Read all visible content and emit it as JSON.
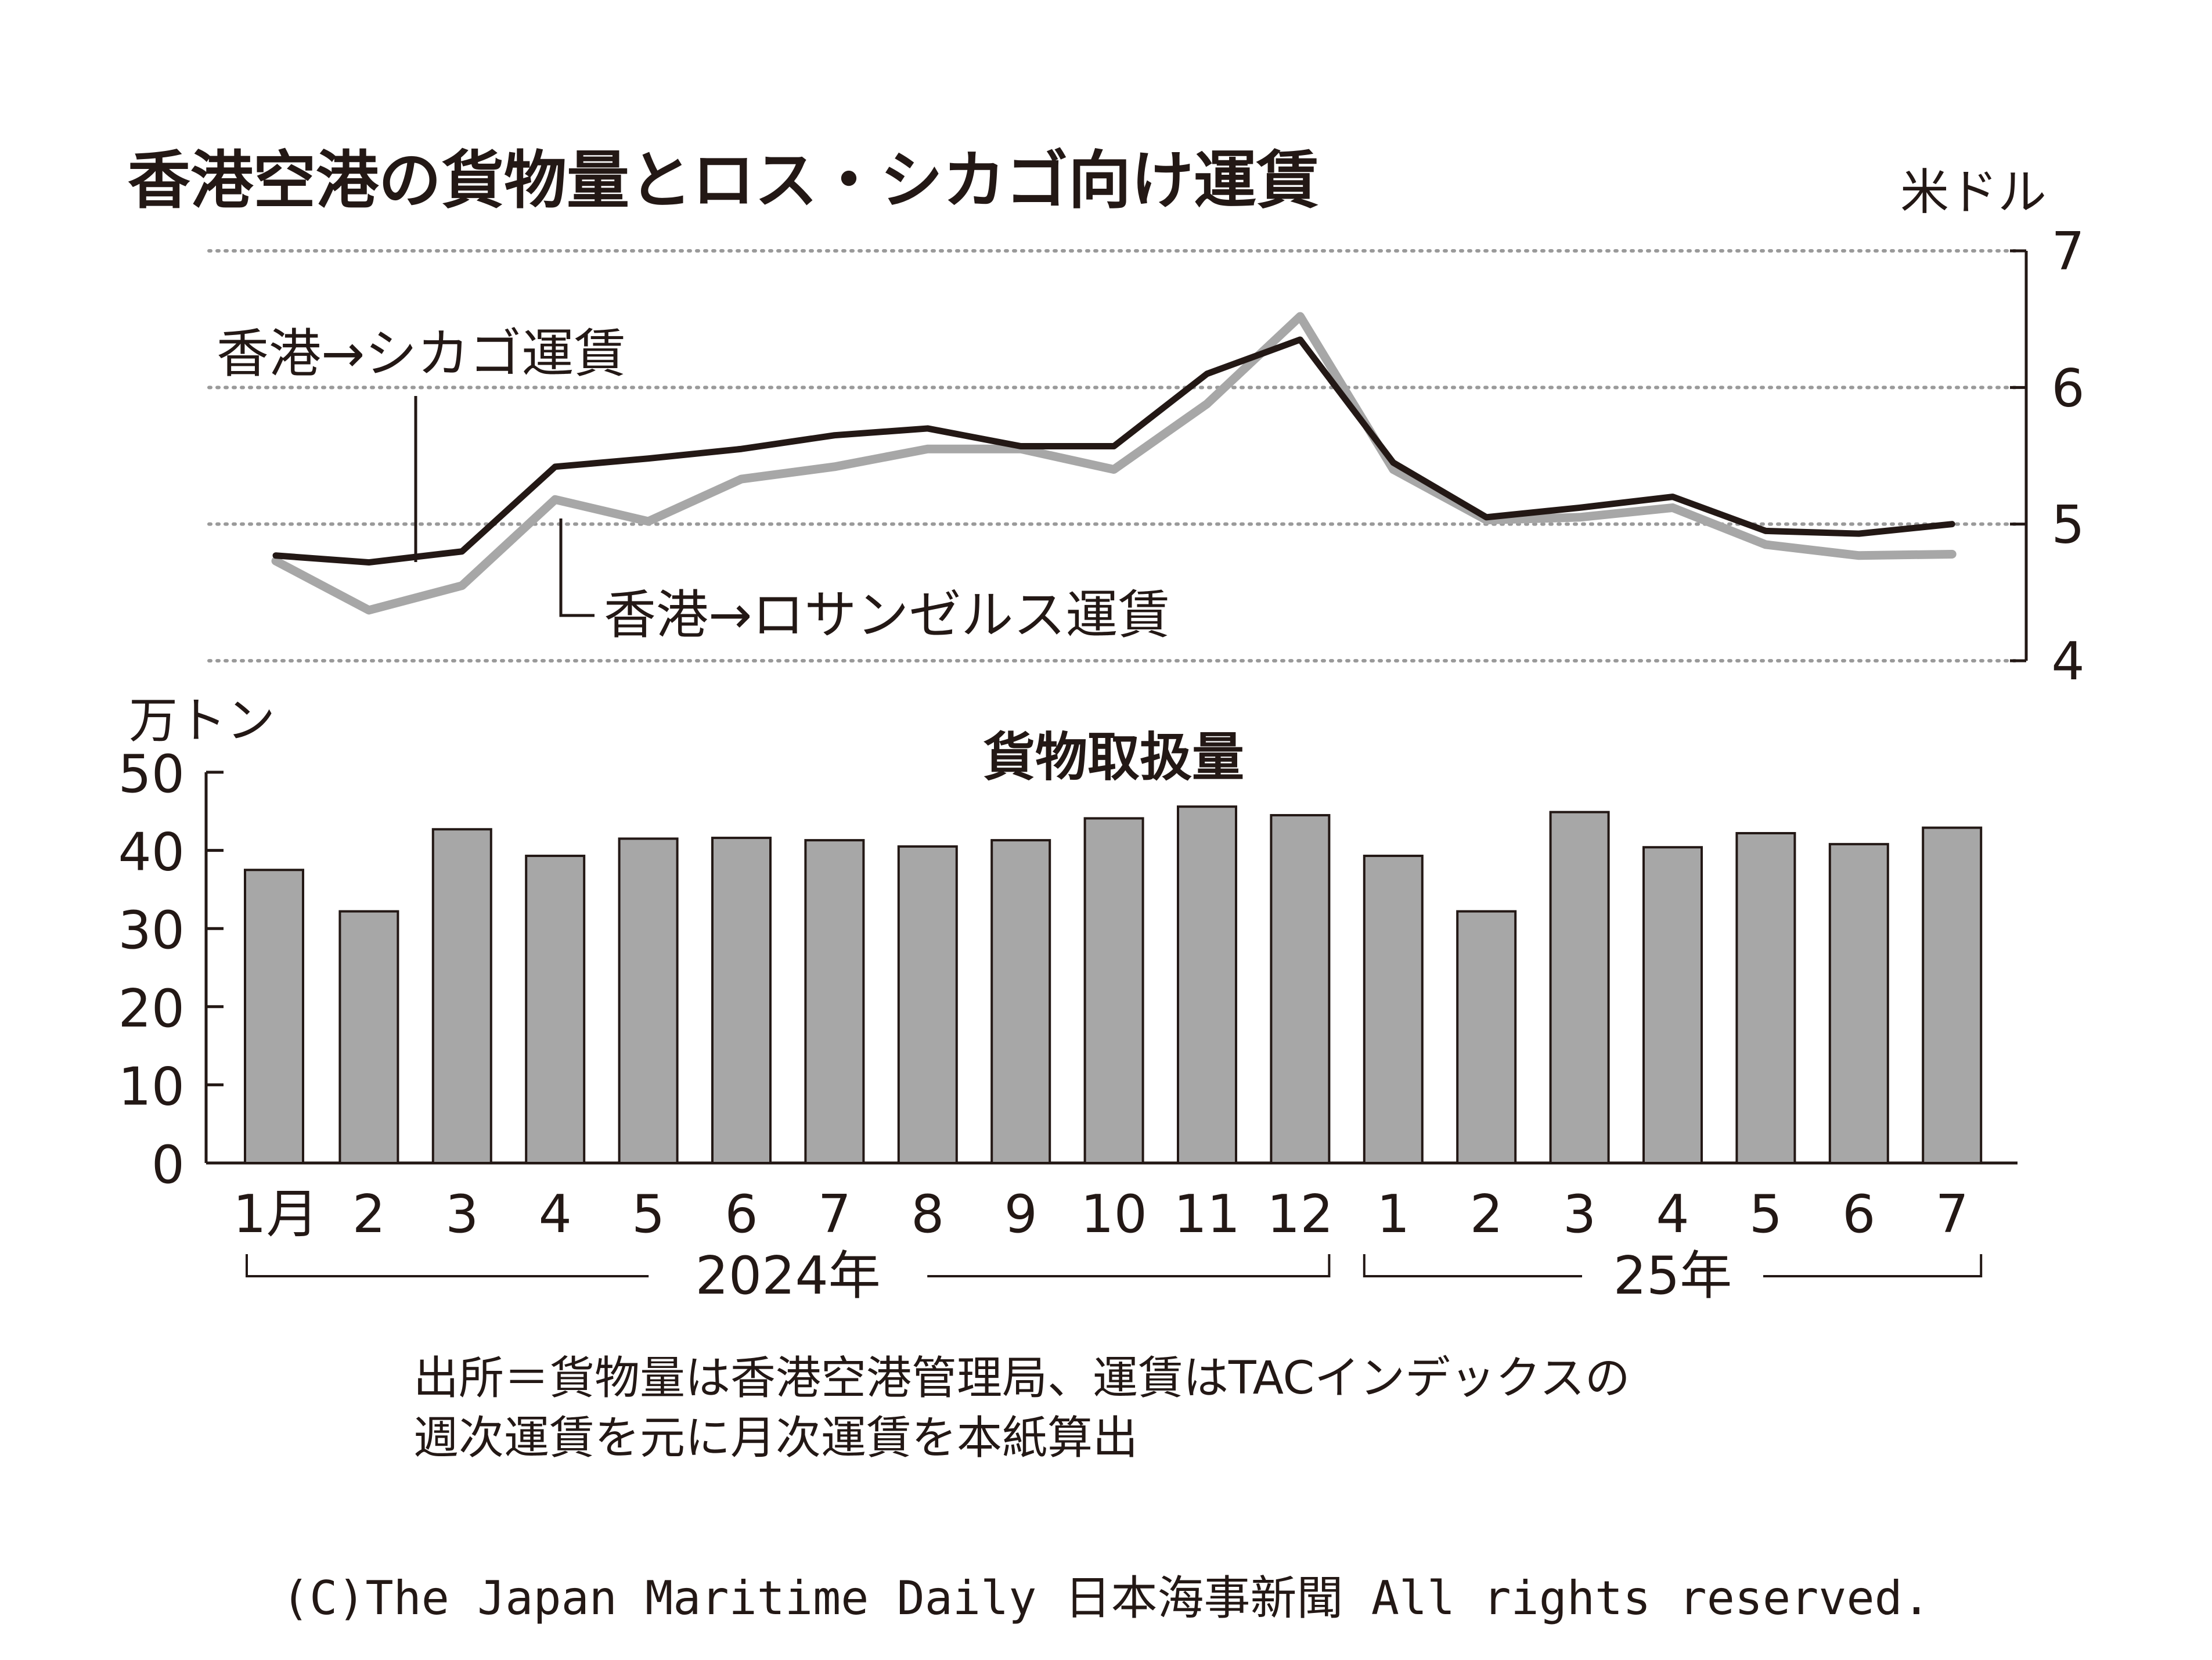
{
  "chart_data": [
    {
      "type": "line",
      "title": "香港空港の貨物量とロス・シカゴ向け運賃",
      "ylabel": "米ドル",
      "ylim": [
        4,
        7
      ],
      "yticks": [
        "7",
        "6",
        "5",
        "4"
      ],
      "grid": true,
      "x": [
        "2024-01",
        "2024-02",
        "2024-03",
        "2024-04",
        "2024-05",
        "2024-06",
        "2024-07",
        "2024-08",
        "2024-09",
        "2024-10",
        "2024-11",
        "2024-12",
        "2025-01",
        "2025-02",
        "2025-03",
        "2025-04",
        "2025-05",
        "2025-06",
        "2025-07"
      ],
      "series": [
        {
          "name": "香港→シカゴ運賃",
          "color": "#231815",
          "values": [
            4.77,
            4.72,
            4.8,
            5.42,
            5.48,
            5.55,
            5.65,
            5.7,
            5.57,
            5.57,
            6.1,
            6.35,
            5.45,
            5.05,
            5.12,
            5.2,
            4.95,
            4.93,
            5.0
          ]
        },
        {
          "name": "香港→ロサンゼルス運賃",
          "color": "#a7a7a7",
          "values": [
            4.73,
            4.37,
            4.55,
            5.18,
            5.02,
            5.33,
            5.42,
            5.55,
            5.55,
            5.4,
            5.88,
            6.52,
            5.4,
            5.03,
            5.05,
            5.12,
            4.85,
            4.77,
            4.78
          ]
        }
      ]
    },
    {
      "type": "bar",
      "title": "貨物取扱量",
      "ylabel": "万トン",
      "ylim": [
        0,
        50
      ],
      "yticks": [
        "50",
        "40",
        "30",
        "20",
        "10",
        "0"
      ],
      "categories": [
        "1月",
        "2",
        "3",
        "4",
        "5",
        "6",
        "7",
        "8",
        "9",
        "10",
        "11",
        "12",
        "1",
        "2",
        "3",
        "4",
        "5",
        "6",
        "7"
      ],
      "values": [
        37.5,
        32.2,
        42.7,
        39.3,
        41.5,
        41.6,
        41.3,
        40.5,
        41.3,
        44.1,
        45.6,
        44.5,
        39.3,
        32.2,
        44.9,
        40.4,
        42.2,
        40.8,
        42.9
      ],
      "bar_color": "#a7a7a7",
      "year_groups": [
        {
          "label": "2024年",
          "from": 0,
          "to": 11
        },
        {
          "label": "25年",
          "from": 12,
          "to": 18
        }
      ]
    }
  ],
  "source_note": [
    "出所＝貨物量は香港空港管理局、運賃はTACインデックスの",
    "週次運賃を元に月次運賃を本紙算出"
  ],
  "copyright": "(C)The Japan Maritime Daily 日本海事新聞 All rights reserved."
}
